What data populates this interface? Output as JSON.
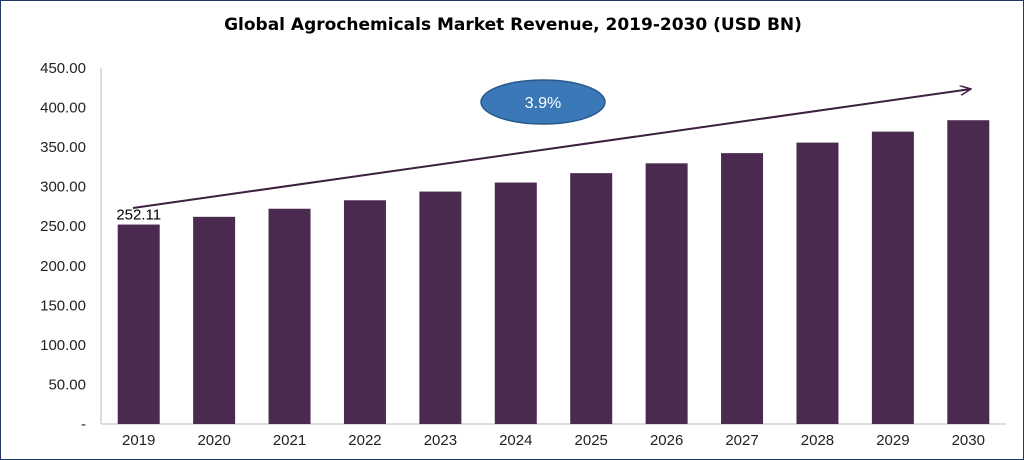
{
  "chart_data": {
    "type": "bar",
    "title": "Global Agrochemicals Market Revenue, 2019-2030 (USD BN)",
    "xlabel": "",
    "ylabel": "",
    "categories": [
      "2019",
      "2020",
      "2021",
      "2022",
      "2023",
      "2024",
      "2025",
      "2026",
      "2027",
      "2028",
      "2029",
      "2030"
    ],
    "values": [
      252.11,
      261.9,
      272.1,
      282.8,
      293.8,
      305.2,
      317.1,
      329.5,
      342.4,
      355.7,
      369.6,
      384.0
    ],
    "ylim": [
      0,
      450
    ],
    "yticks": [
      "-",
      "50.00",
      "100.00",
      "150.00",
      "200.00",
      "250.00",
      "300.00",
      "350.00",
      "400.00",
      "450.00"
    ],
    "data_labels": [
      {
        "category": "2019",
        "text": "252.11"
      }
    ],
    "annotation": {
      "text": "3.9%",
      "shape": "ellipse",
      "arrow": "trend arrow from 2019 to 2030"
    },
    "grid": false,
    "legend": "none",
    "colors": {
      "bar": "#4b2a4f",
      "ellipse": "#3a78b8",
      "arrow": "#3d1f40",
      "frame": "#1f3864"
    }
  }
}
